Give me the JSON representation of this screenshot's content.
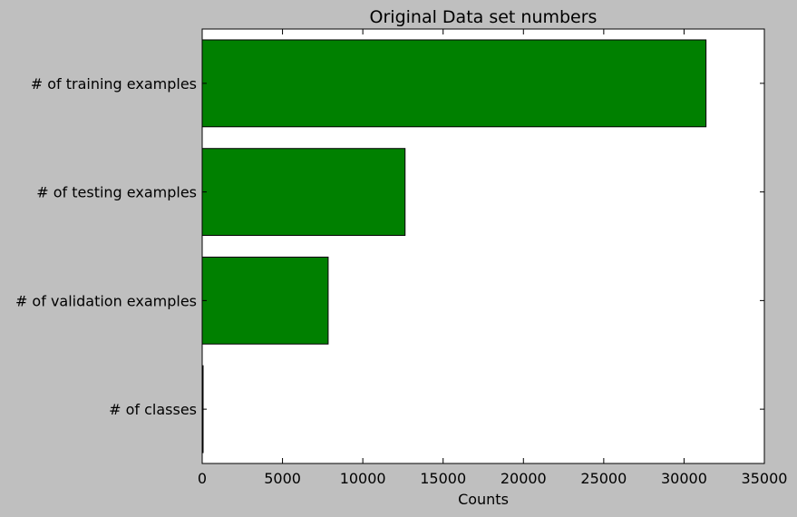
{
  "chart_data": {
    "type": "bar",
    "orientation": "horizontal",
    "title": "Original Data set numbers",
    "xlabel": "Counts",
    "ylabel": "",
    "categories": [
      "# of training examples",
      "# of testing examples",
      "# of validation examples",
      "# of classes"
    ],
    "values": [
      31367,
      12630,
      7842,
      43
    ],
    "xlim": [
      0,
      35000
    ],
    "xticks": [
      0,
      5000,
      10000,
      15000,
      20000,
      25000,
      30000,
      35000
    ],
    "xtick_labels": [
      "0",
      "5000",
      "10000",
      "15000",
      "20000",
      "25000",
      "30000",
      "35000"
    ],
    "grid": false,
    "legend": "none",
    "colors": {
      "bar": "#008000",
      "bar_edge": "#000000",
      "plot_background": "#ffffff",
      "figure_background": "#bfbfbf"
    }
  }
}
